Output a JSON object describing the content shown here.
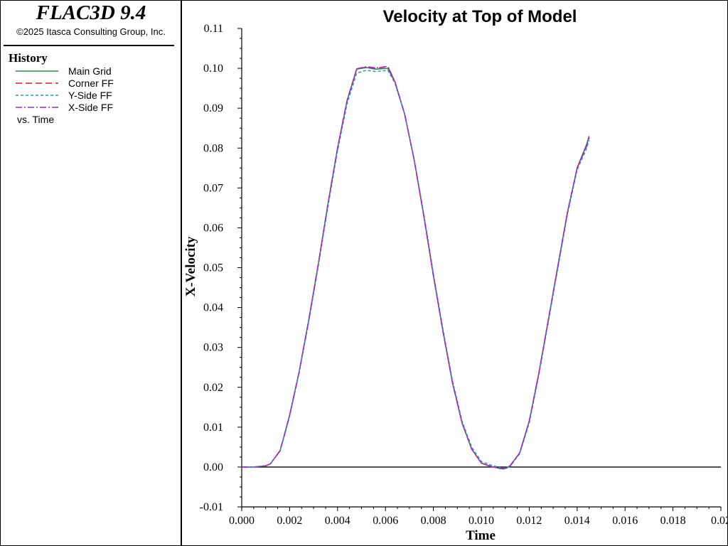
{
  "app": {
    "title": "FLAC3D 9.4",
    "copyright": "©2025 Itasca Consulting Group, Inc."
  },
  "legend": {
    "heading": "History",
    "vs_label": "vs. Time",
    "items": [
      {
        "label": "Main Grid",
        "color": "#1b8a4a",
        "dash": "solid"
      },
      {
        "label": "Corner FF",
        "color": "#e31a1c",
        "dash": "dashed"
      },
      {
        "label": "Y-Side FF",
        "color": "#1f9fc0",
        "dash": "dotted"
      },
      {
        "label": "X-Side FF",
        "color": "#a020f0",
        "dash": "dashdot"
      }
    ]
  },
  "chart_data": {
    "type": "line",
    "title": "Velocity at Top of Model",
    "xlabel": "Time",
    "ylabel": "X-Velocity",
    "xlim": [
      0,
      0.02
    ],
    "ylim": [
      -0.01,
      0.11
    ],
    "x_ticks": [
      "0.000",
      "0.002",
      "0.004",
      "0.006",
      "0.008",
      "0.010",
      "0.012",
      "0.014",
      "0.016",
      "0.018",
      "0.02"
    ],
    "y_ticks": [
      "0.11",
      "0.10",
      "0.09",
      "0.08",
      "0.07",
      "0.06",
      "0.05",
      "0.04",
      "0.03",
      "0.02",
      "0.01",
      "0.00",
      "-0.01"
    ],
    "zero_line": true,
    "grid": false,
    "x": [
      0.0,
      0.0005,
      0.001,
      0.0012,
      0.0016,
      0.0018,
      0.002,
      0.0024,
      0.0028,
      0.0032,
      0.0036,
      0.004,
      0.0044,
      0.0048,
      0.0052,
      0.0056,
      0.0061,
      0.0064,
      0.0068,
      0.0072,
      0.0076,
      0.008,
      0.0084,
      0.0088,
      0.0092,
      0.0096,
      0.01,
      0.0104,
      0.0108,
      0.011,
      0.0112,
      0.0116,
      0.012,
      0.0124,
      0.0128,
      0.0132,
      0.0136,
      0.014,
      0.0144,
      0.0145
    ],
    "series": [
      {
        "name": "Main Grid",
        "values": [
          0.0,
          0.0,
          0.0003,
          0.0008,
          0.0041,
          0.0085,
          0.013,
          0.024,
          0.037,
          0.051,
          0.066,
          0.08,
          0.092,
          0.0998,
          0.1002,
          0.0998,
          0.1,
          0.0965,
          0.0885,
          0.077,
          0.063,
          0.048,
          0.034,
          0.021,
          0.011,
          0.0045,
          0.001,
          0.0002,
          -0.0004,
          -0.0003,
          0.0003,
          0.0035,
          0.0115,
          0.0235,
          0.037,
          0.0505,
          0.064,
          0.075,
          0.081,
          0.083
        ]
      },
      {
        "name": "Corner FF",
        "values": [
          0.0,
          0.0,
          0.0003,
          0.0008,
          0.0041,
          0.0085,
          0.013,
          0.024,
          0.037,
          0.051,
          0.066,
          0.08,
          0.092,
          0.0999,
          0.1003,
          0.1,
          0.1004,
          0.0965,
          0.0885,
          0.077,
          0.063,
          0.048,
          0.034,
          0.021,
          0.011,
          0.0045,
          0.001,
          0.0001,
          -0.0003,
          -0.0003,
          0.0003,
          0.0035,
          0.0115,
          0.0235,
          0.037,
          0.0505,
          0.064,
          0.075,
          0.0805,
          0.0825
        ]
      },
      {
        "name": "Y-Side FF",
        "values": [
          0.0,
          0.0,
          0.0003,
          0.0008,
          0.004,
          0.0083,
          0.0127,
          0.0237,
          0.0365,
          0.0505,
          0.0653,
          0.0793,
          0.0912,
          0.0988,
          0.0995,
          0.0992,
          0.0995,
          0.0962,
          0.0885,
          0.0772,
          0.0635,
          0.0485,
          0.0345,
          0.0215,
          0.0115,
          0.005,
          0.0014,
          0.0005,
          -0.0002,
          -0.0004,
          0.0002,
          0.0033,
          0.011,
          0.023,
          0.0365,
          0.05,
          0.0635,
          0.0745,
          0.08,
          0.082
        ]
      },
      {
        "name": "X-Side FF",
        "values": [
          0.0,
          0.0,
          0.0003,
          0.0008,
          0.0041,
          0.0085,
          0.013,
          0.024,
          0.037,
          0.051,
          0.066,
          0.08,
          0.092,
          0.0999,
          0.1004,
          0.1001,
          0.1005,
          0.0966,
          0.0885,
          0.077,
          0.063,
          0.048,
          0.034,
          0.021,
          0.011,
          0.0045,
          0.001,
          0.0001,
          -0.0004,
          -0.0005,
          0.0002,
          0.0035,
          0.0115,
          0.0235,
          0.037,
          0.0505,
          0.064,
          0.075,
          0.0808,
          0.0828
        ]
      }
    ]
  }
}
